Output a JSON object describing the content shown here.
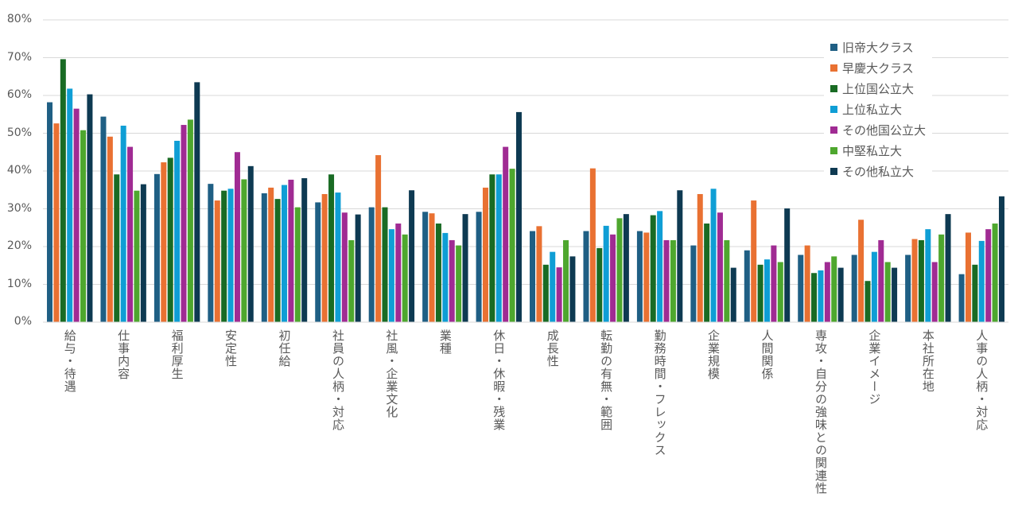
{
  "chart_data": {
    "type": "bar",
    "title": "",
    "xlabel": "",
    "ylabel": "",
    "ylim": [
      0,
      80
    ],
    "yticks": [
      "0%",
      "10%",
      "20%",
      "30%",
      "40%",
      "50%",
      "60%",
      "70%",
      "80%"
    ],
    "grid": true,
    "legend_position": "top-right",
    "categories": [
      "給与・待遇",
      "仕事内容",
      "福利厚生",
      "安定性",
      "初任給",
      "社員の人柄・対応",
      "社風・企業文化",
      "業種",
      "休日・休暇・残業",
      "成長性",
      "転勤の有無・範囲",
      "勤務時間・フレックス",
      "企業規模",
      "人間関係",
      "専攻・自分の強味との関連性",
      "企業イメージ",
      "本社所在地",
      "人事の人柄・対応"
    ],
    "series": [
      {
        "name": "旧帝大クラス",
        "color": "#1f5f84",
        "values": [
          58.2,
          54.4,
          39.2,
          36.6,
          34.1,
          31.7,
          30.4,
          29.2,
          29.2,
          24.1,
          24.1,
          24.1,
          20.3,
          19.0,
          17.8,
          17.8,
          17.8,
          12.7
        ]
      },
      {
        "name": "早慶大クラス",
        "color": "#e97132",
        "values": [
          52.6,
          49.1,
          42.3,
          32.2,
          35.6,
          33.9,
          44.2,
          28.8,
          35.6,
          25.4,
          40.7,
          23.7,
          33.9,
          32.2,
          20.3,
          27.1,
          22.0,
          23.7
        ]
      },
      {
        "name": "上位国公立大",
        "color": "#196b24",
        "values": [
          69.6,
          39.1,
          43.5,
          34.8,
          32.6,
          39.1,
          30.4,
          26.1,
          39.1,
          15.2,
          19.6,
          28.3,
          26.1,
          15.2,
          13.0,
          10.9,
          21.7,
          15.2
        ]
      },
      {
        "name": "上位私立大",
        "color": "#0f9ed5",
        "values": [
          61.8,
          52.0,
          48.0,
          35.3,
          36.3,
          34.3,
          24.6,
          23.6,
          39.1,
          18.6,
          25.5,
          29.4,
          35.3,
          16.6,
          13.7,
          18.6,
          24.6,
          21.5
        ]
      },
      {
        "name": "その他国公立大",
        "color": "#a02b93",
        "values": [
          56.5,
          46.4,
          52.2,
          45.0,
          37.7,
          29.0,
          26.1,
          21.7,
          46.4,
          14.5,
          23.2,
          21.7,
          29.0,
          20.3,
          15.9,
          21.7,
          15.9,
          24.6
        ]
      },
      {
        "name": "中堅私立大",
        "color": "#4ea72e",
        "values": [
          50.8,
          34.8,
          53.6,
          37.8,
          30.4,
          21.7,
          23.2,
          20.3,
          40.6,
          21.7,
          27.5,
          21.7,
          21.7,
          15.9,
          17.4,
          15.9,
          23.2,
          26.1
        ]
      },
      {
        "name": "その他私立大",
        "color": "#0e3a52",
        "values": [
          60.3,
          36.5,
          63.5,
          41.3,
          38.1,
          28.5,
          34.9,
          28.6,
          55.6,
          17.4,
          28.6,
          34.9,
          14.4,
          30.1,
          14.4,
          14.4,
          28.6,
          33.3
        ]
      }
    ]
  }
}
